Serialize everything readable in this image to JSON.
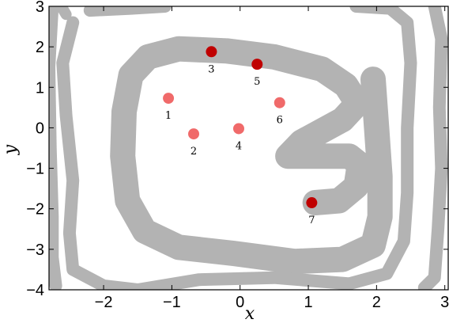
{
  "chart_data": {
    "type": "scatter",
    "title": "",
    "xlabel": "x",
    "ylabel": "y",
    "xlim": [
      -2.8,
      3.05
    ],
    "ylim": [
      -4,
      3
    ],
    "xticks": [
      {
        "value": -2,
        "label": "−2"
      },
      {
        "value": -1,
        "label": "−1"
      },
      {
        "value": 0,
        "label": "0"
      },
      {
        "value": 1,
        "label": "1"
      },
      {
        "value": 2,
        "label": "2"
      },
      {
        "value": 3,
        "label": "3"
      }
    ],
    "yticks": [
      {
        "value": -4,
        "label": "−4"
      },
      {
        "value": -3,
        "label": "−3"
      },
      {
        "value": -2,
        "label": "−2"
      },
      {
        "value": -1,
        "label": "−1"
      },
      {
        "value": 0,
        "label": "0"
      },
      {
        "value": 1,
        "label": "1"
      },
      {
        "value": 2,
        "label": "2"
      },
      {
        "value": 3,
        "label": "3"
      }
    ],
    "grid": false,
    "background_regions": {
      "color": "#b3b3b3",
      "description_count": 3
    },
    "series": [
      {
        "points": [
          {
            "label": "1",
            "x": -1.05,
            "y": 0.73,
            "color": "#f06a6a"
          },
          {
            "label": "2",
            "x": -0.68,
            "y": -0.15,
            "color": "#f06a6a"
          },
          {
            "label": "3",
            "x": -0.42,
            "y": 1.88,
            "color": "#c00000"
          },
          {
            "label": "4",
            "x": -0.02,
            "y": -0.02,
            "color": "#f06a6a"
          },
          {
            "label": "5",
            "x": 0.25,
            "y": 1.57,
            "color": "#c00000"
          },
          {
            "label": "6",
            "x": 0.58,
            "y": 0.62,
            "color": "#f06a6a"
          },
          {
            "label": "7",
            "x": 1.05,
            "y": -1.85,
            "color": "#c00000"
          }
        ]
      }
    ]
  }
}
